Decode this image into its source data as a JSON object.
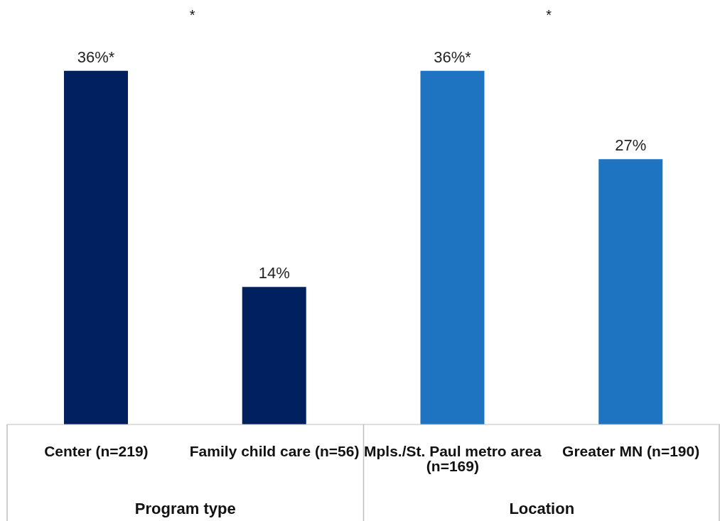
{
  "chart_data": {
    "type": "bar",
    "categories": [
      "Center (n=219)",
      "Family child care (n=56)",
      "Mpls./St. Paul metro area (n=169)",
      "Greater MN (n=190)"
    ],
    "values": [
      36,
      14,
      36,
      27
    ],
    "colors": [
      "#002060",
      "#002060",
      "#1f74c1",
      "#1f74c1"
    ],
    "value_labels": [
      "36%*",
      "14%",
      "36%*",
      "27%"
    ],
    "annotations": [
      "*",
      "*",
      "Program type",
      "Location"
    ]
  }
}
